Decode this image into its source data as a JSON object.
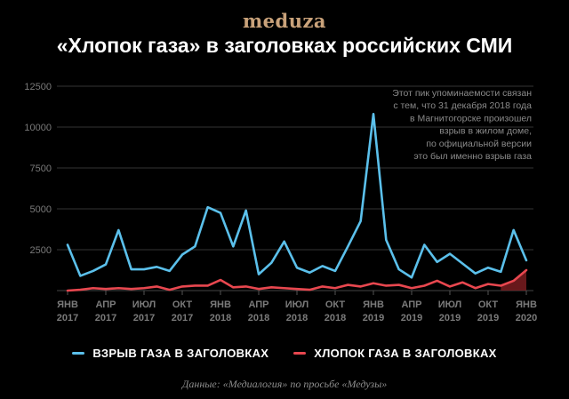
{
  "logo": "meduza",
  "title": "«Хлопок газа» в заголовках российских СМИ",
  "source": "Данные: «Медиалогия» по просьбе «Медузы»",
  "colors": {
    "explosion": "#5bc0eb",
    "pop": "#e8474f",
    "background": "#000000",
    "grid": "#333333",
    "logo": "#c9a27a"
  },
  "chart_data": {
    "type": "line",
    "title": "«Хлопок газа» в заголовках российских СМИ",
    "xlabel": "",
    "ylabel": "",
    "ylim": [
      0,
      12500
    ],
    "yticks": [
      2500,
      5000,
      7500,
      10000,
      12500
    ],
    "ytick_labels": [
      "2500",
      "5000",
      "7500",
      "10000",
      "12500"
    ],
    "xticks": [
      {
        "index": 0,
        "label": "ЯНВ 2017"
      },
      {
        "index": 3,
        "label": "АПР 2017"
      },
      {
        "index": 6,
        "label": "ИЮЛ 2017"
      },
      {
        "index": 9,
        "label": "ОКТ 2017"
      },
      {
        "index": 12,
        "label": "ЯНВ 2018"
      },
      {
        "index": 15,
        "label": "АПР 2018"
      },
      {
        "index": 18,
        "label": "ИЮЛ 2018"
      },
      {
        "index": 21,
        "label": "ОКТ 2018"
      },
      {
        "index": 24,
        "label": "ЯНВ 2019"
      },
      {
        "index": 27,
        "label": "АПР 2019"
      },
      {
        "index": 30,
        "label": "ИЮЛ 2019"
      },
      {
        "index": 33,
        "label": "ОКТ 2019"
      },
      {
        "index": 36,
        "label": "ЯНВ 2020"
      }
    ],
    "grid": true,
    "legend_position": "bottom",
    "series": [
      {
        "name": "ВЗРЫВ ГАЗА В ЗАГОЛОВКАХ",
        "color": "#5bc0eb",
        "values": [
          2800,
          900,
          1200,
          1600,
          3700,
          1300,
          1300,
          1450,
          1200,
          2200,
          2700,
          5100,
          4750,
          2700,
          4900,
          1000,
          1700,
          3000,
          1400,
          1100,
          1500,
          1200,
          2700,
          4250,
          10800,
          3100,
          1300,
          800,
          2800,
          1750,
          2250,
          1650,
          1050,
          1400,
          1150,
          3700,
          1850
        ]
      },
      {
        "name": "ХЛОПОК ГАЗА В ЗАГОЛОВКАХ",
        "color": "#e8474f",
        "values": [
          0,
          50,
          150,
          100,
          150,
          100,
          150,
          250,
          50,
          250,
          300,
          300,
          650,
          200,
          250,
          100,
          200,
          150,
          100,
          50,
          250,
          150,
          350,
          250,
          450,
          300,
          350,
          150,
          300,
          600,
          250,
          500,
          150,
          400,
          300,
          600,
          1250
        ]
      }
    ],
    "annotations": [
      {
        "index": 24,
        "lines": [
          "Этот пик упоминаемости связан",
          "с тем, что 31 декабря 2018 года",
          "в Магнитогорске произошел",
          "взрыв в жилом доме,",
          "по официальной версии",
          "это был именно взрыв газа"
        ]
      }
    ]
  }
}
